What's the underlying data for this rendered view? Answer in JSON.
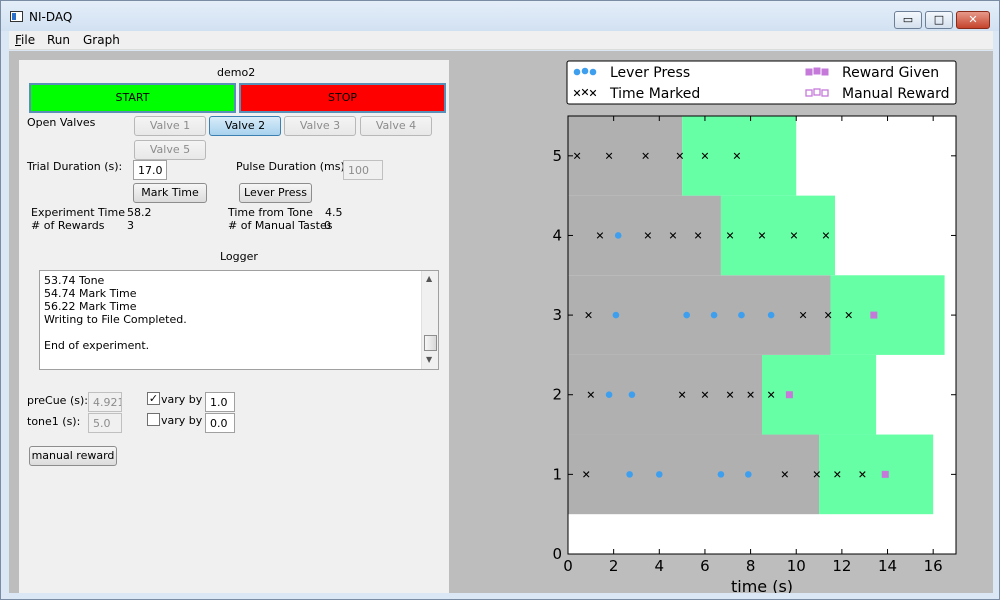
{
  "window": {
    "title": "NI-DAQ",
    "controls": {
      "minimize": "▭",
      "maximize": "□",
      "close": "✕"
    }
  },
  "menu": [
    {
      "label_ul": "F",
      "label_rest": "ile"
    },
    {
      "label_ul": "",
      "label_rest": "Run"
    },
    {
      "label_ul": "",
      "label_rest": "Graph"
    }
  ],
  "controls": {
    "experiment_name": "demo2",
    "start_label": "START",
    "stop_label": "STOP",
    "start_color": "#00ff00",
    "stop_color": "#ff0000",
    "open_valves_label": "Open Valves",
    "valves": [
      "Valve 1",
      "Valve 2",
      "Valve 3",
      "Valve 4",
      "Valve 5"
    ],
    "trial_duration_label": "Trial Duration (s):",
    "trial_duration_value": "17.0",
    "pulse_duration_label": "Pulse Duration (ms):",
    "pulse_duration_value": "100",
    "mark_time_label": "Mark Time",
    "lever_press_label": "Lever Press",
    "experiment_time_label": "Experiment Time",
    "experiment_time_value": "58.2",
    "rewards_label": "# of Rewards",
    "rewards_value": "3",
    "time_from_tone_label": "Time from Tone",
    "time_from_tone_value": "4.5",
    "manual_tastes_label": "# of Manual Tastes",
    "manual_tastes_value": "0",
    "logger_label": "Logger",
    "logger_lines": [
      "53.74 Tone",
      "54.74 Mark Time",
      "56.22 Mark Time",
      "Writing to File Completed.",
      "",
      "End of experiment."
    ],
    "precue_label": "preCue (s):",
    "precue_value": "4.921",
    "precue_vary_label": "vary by",
    "precue_vary_value": "1.0",
    "precue_vary_checked": "✓",
    "tone1_label": "tone1 (s):",
    "tone1_value": "5.0",
    "tone1_vary_label": "vary by",
    "tone1_vary_value": "0.0",
    "manual_reward_label": "manual reward"
  },
  "chart_data": {
    "type": "scatter",
    "xlabel": "time (s)",
    "ylabel": "",
    "xlim": [
      0,
      17
    ],
    "ylim": [
      0,
      5.5
    ],
    "x_ticks": [
      0,
      2,
      4,
      6,
      8,
      10,
      12,
      14,
      16
    ],
    "y_ticks": [
      0,
      1,
      2,
      3,
      4,
      5
    ],
    "legend": {
      "placement": "top",
      "entries": [
        {
          "label": "Lever Press",
          "marker": "circle",
          "color": "#3f9fef"
        },
        {
          "label": "Time Marked",
          "marker": "x",
          "color": "#000000"
        },
        {
          "label": "Reward Given",
          "marker": "square",
          "color": "#c57ad9"
        },
        {
          "label": "Manual Reward",
          "marker": "square-open",
          "color": "#c57ad9"
        }
      ]
    },
    "colors": {
      "precue": "#b0b0b0",
      "tone": "#66ffa6",
      "background": "#ffffff"
    },
    "trials": [
      {
        "trial": 1,
        "precue_end": 11.0,
        "tone_end": 16.0,
        "lever_press": [
          2.7,
          4.0,
          6.7,
          7.9
        ],
        "time_marked": [
          0.8,
          9.5,
          10.9,
          11.8,
          12.9
        ],
        "reward_given": [
          13.9
        ],
        "manual_reward": []
      },
      {
        "trial": 2,
        "precue_end": 8.5,
        "tone_end": 13.5,
        "lever_press": [
          1.8,
          2.8
        ],
        "time_marked": [
          1.0,
          5.0,
          6.0,
          7.1,
          8.0,
          8.9
        ],
        "reward_given": [
          9.7
        ],
        "manual_reward": []
      },
      {
        "trial": 3,
        "precue_end": 11.5,
        "tone_end": 16.5,
        "lever_press": [
          2.1,
          5.2,
          6.4,
          7.6,
          8.9
        ],
        "time_marked": [
          0.9,
          10.3,
          11.4,
          12.3
        ],
        "reward_given": [
          13.4
        ],
        "manual_reward": []
      },
      {
        "trial": 4,
        "precue_end": 6.7,
        "tone_end": 11.7,
        "lever_press": [
          2.2
        ],
        "time_marked": [
          1.4,
          3.5,
          4.6,
          5.7,
          7.1,
          8.5,
          9.9,
          11.3
        ],
        "reward_given": [],
        "manual_reward": []
      },
      {
        "trial": 5,
        "precue_end": 5.0,
        "tone_end": 10.0,
        "lever_press": [],
        "time_marked": [
          0.4,
          1.8,
          3.4,
          4.9,
          6.0,
          7.4
        ],
        "reward_given": [],
        "manual_reward": []
      }
    ]
  }
}
